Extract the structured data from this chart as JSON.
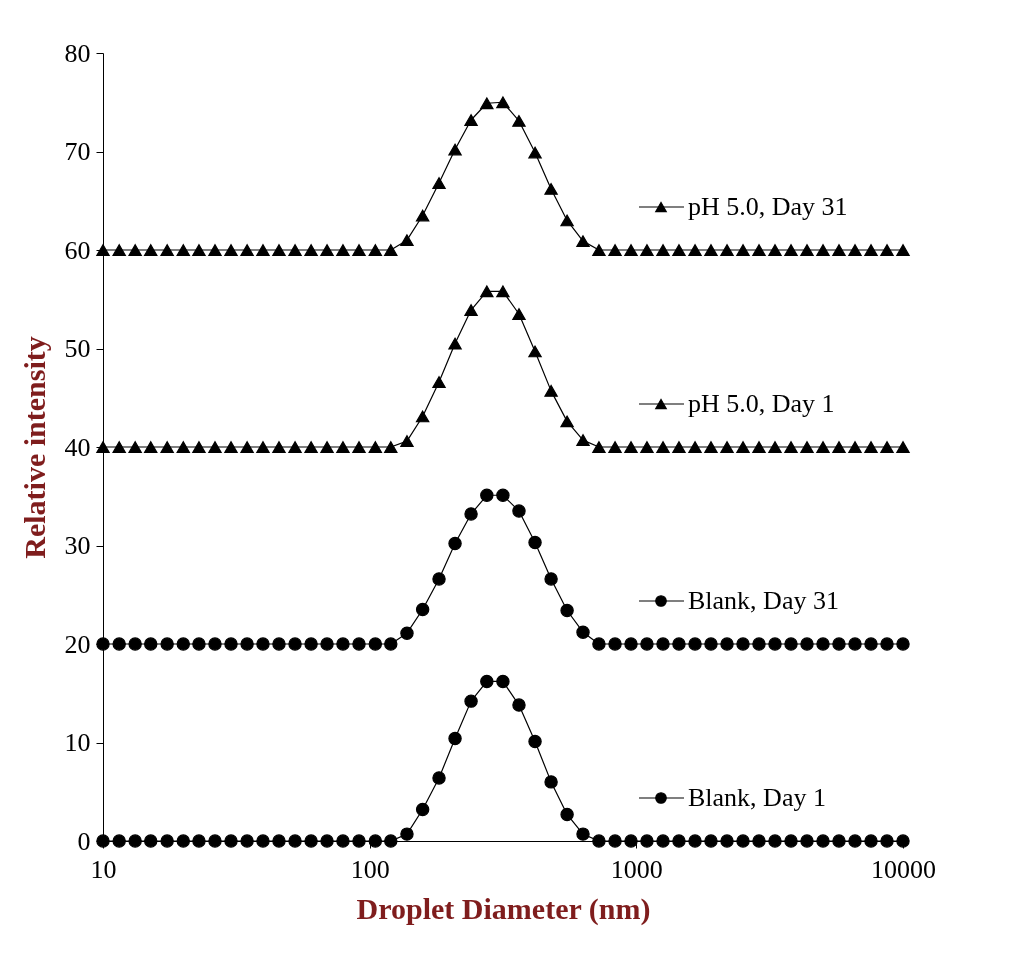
{
  "chart_data": {
    "type": "line",
    "xlabel": "Droplet Diameter (nm)",
    "ylabel": "Relative intensity",
    "log": "x",
    "x": [
      10,
      11.5,
      13.2,
      15.1,
      17.4,
      20,
      22.9,
      26.3,
      30.2,
      34.7,
      39.8,
      45.7,
      52.5,
      60.3,
      69.2,
      79.4,
      91.2,
      105,
      120,
      138,
      158,
      182,
      209,
      240,
      275,
      316,
      363,
      417,
      479,
      550,
      631,
      724,
      832,
      955,
      1096,
      1259,
      1445,
      1660,
      1905,
      2188,
      2512,
      2884,
      3311,
      3802,
      4365,
      5012,
      5754,
      6607,
      7586,
      8710,
      10000
    ],
    "xlim": [
      10,
      10000
    ],
    "xticks": [
      10,
      100,
      1000,
      10000
    ],
    "ylim": [
      0,
      80
    ],
    "yticks": [
      0,
      10,
      20,
      30,
      40,
      50,
      60,
      70,
      80
    ],
    "grid": false,
    "line_style": "solid",
    "legend": "right",
    "series": [
      {
        "name": "Blank, Day 1",
        "color": "#000000",
        "marker": "circle",
        "values": [
          0,
          0,
          0,
          0,
          0,
          0,
          0,
          0,
          0,
          0,
          0,
          0,
          0,
          0,
          0,
          0,
          0,
          0,
          0,
          0.7,
          3.2,
          6.4,
          10.4,
          14.2,
          16.2,
          16.2,
          13.8,
          10.1,
          6.0,
          2.7,
          0.7,
          0,
          0,
          0,
          0,
          0,
          0,
          0,
          0,
          0,
          0,
          0,
          0,
          0,
          0,
          0,
          0,
          0,
          0,
          0,
          0
        ]
      },
      {
        "name": "Blank, Day 31",
        "color": "#000000",
        "marker": "circle",
        "values": [
          20,
          20,
          20,
          20,
          20,
          20,
          20,
          20,
          20,
          20,
          20,
          20,
          20,
          20,
          20,
          20,
          20,
          20,
          20,
          21.1,
          23.5,
          26.6,
          30.2,
          33.2,
          35.1,
          35.1,
          33.5,
          30.3,
          26.6,
          23.4,
          21.2,
          20,
          20,
          20,
          20,
          20,
          20,
          20,
          20,
          20,
          20,
          20,
          20,
          20,
          20,
          20,
          20,
          20,
          20,
          20,
          20
        ]
      },
      {
        "name": "pH 5.0, Day 1",
        "color": "#000000",
        "marker": "triangle",
        "values": [
          40,
          40,
          40,
          40,
          40,
          40,
          40,
          40,
          40,
          40,
          40,
          40,
          40,
          40,
          40,
          40,
          40,
          40,
          40,
          40.6,
          43.1,
          46.6,
          50.5,
          53.9,
          55.8,
          55.8,
          53.5,
          49.7,
          45.7,
          42.6,
          40.7,
          40,
          40,
          40,
          40,
          40,
          40,
          40,
          40,
          40,
          40,
          40,
          40,
          40,
          40,
          40,
          40,
          40,
          40,
          40,
          40
        ]
      },
      {
        "name": "pH 5.0, Day 31",
        "color": "#000000",
        "marker": "triangle",
        "values": [
          60,
          60,
          60,
          60,
          60,
          60,
          60,
          60,
          60,
          60,
          60,
          60,
          60,
          60,
          60,
          60,
          60,
          60,
          60,
          61.0,
          63.5,
          66.8,
          70.2,
          73.2,
          74.9,
          75,
          73.1,
          69.9,
          66.2,
          63.0,
          60.9,
          60,
          60,
          60,
          60,
          60,
          60,
          60,
          60,
          60,
          60,
          60,
          60,
          60,
          60,
          60,
          60,
          60,
          60,
          60,
          60
        ]
      }
    ]
  }
}
